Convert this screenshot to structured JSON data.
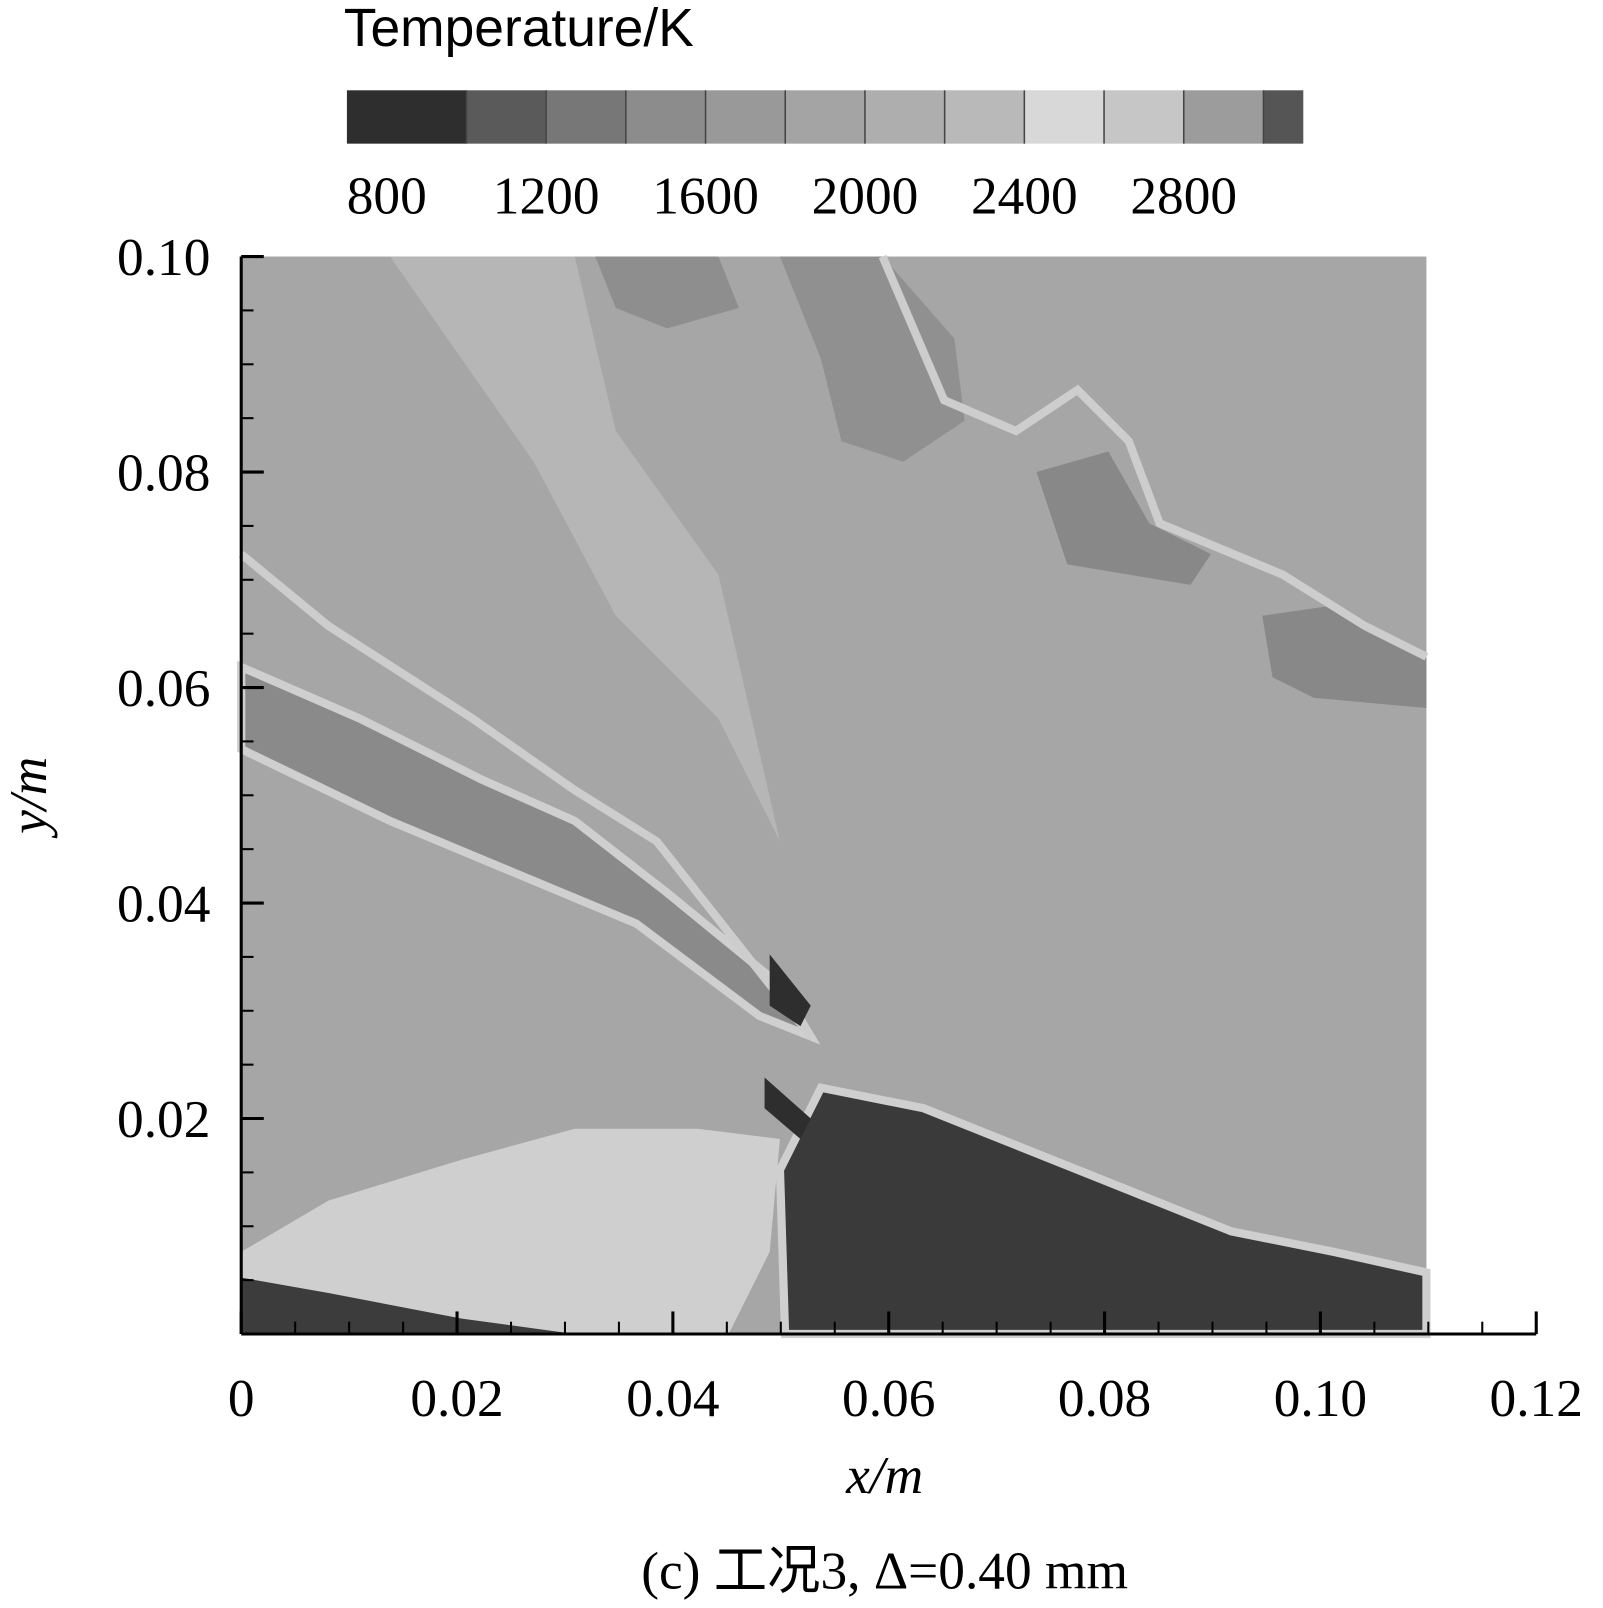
{
  "chart_data": {
    "type": "contour",
    "caption": "(c) 工况3, Δ=0.40 mm",
    "x_label": "x/m",
    "y_label": "y/m",
    "xlim": [
      0,
      0.12
    ],
    "ylim": [
      0,
      0.1
    ],
    "xticks": [
      0,
      0.02,
      0.04,
      0.06,
      0.08,
      {
        "value": 0.1,
        "label": "0.10"
      },
      0.12
    ],
    "yticks": [
      0.02,
      0.04,
      0.06,
      0.08,
      {
        "value": 0.1,
        "label": "0.10"
      }
    ],
    "xminorticks": [
      0.005,
      0.01,
      0.015,
      0.025,
      0.03,
      0.035,
      0.045,
      0.05,
      0.055,
      0.065,
      0.07,
      0.075,
      0.085,
      0.09,
      0.095,
      0.105,
      0.11,
      0.115
    ],
    "yminorticks": [
      0.005,
      0.01,
      0.015,
      0.025,
      0.03,
      0.035,
      0.045,
      0.05,
      0.055,
      0.065,
      0.07,
      0.075,
      0.085,
      0.09,
      0.095
    ],
    "colorbar": {
      "title": "Temperature/K",
      "clim": [
        700,
        3100
      ],
      "ticks": [
        800,
        1200,
        1600,
        2000,
        2400,
        2800
      ],
      "levels": [
        1000,
        1200,
        1400,
        1600,
        1800,
        2000,
        2200,
        2400,
        2600,
        2800,
        3000
      ],
      "colors": [
        "#2e2e2e",
        "#5a5a5a",
        "#777777",
        "#8c8c8c",
        "#999999",
        "#a4a4a4",
        "#aeaeae",
        "#b9b9b9",
        "#d8d8d8",
        "#c6c6c6",
        "#9c9c9c",
        "#555555"
      ]
    }
  }
}
